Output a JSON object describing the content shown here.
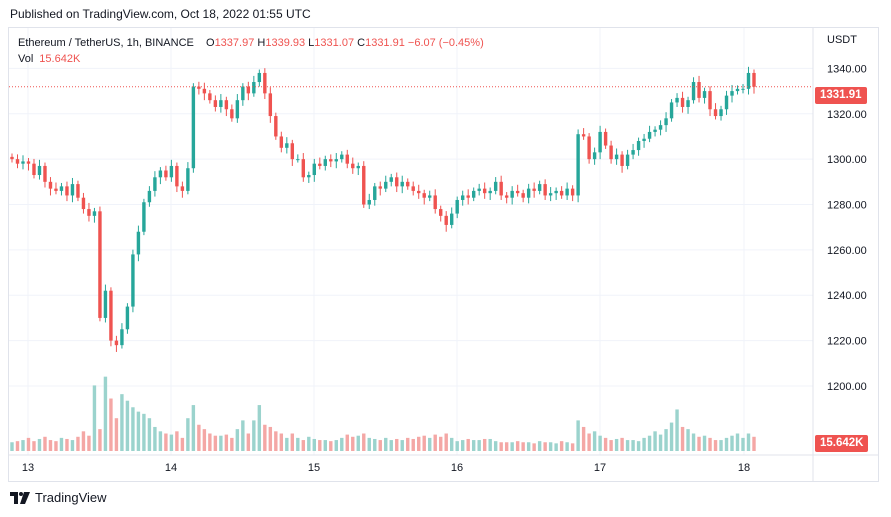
{
  "published": "Published on TradingView.com, Oct 18, 2022 01:55 UTC",
  "legend": {
    "symbol": "Ethereum / TetherUS, 1h, BINANCE",
    "o_label": "O",
    "o_value": "1337.97",
    "h_label": "H",
    "h_value": "1339.93",
    "l_label": "L",
    "l_value": "1331.07",
    "c_label": "C",
    "c_value": "1331.91",
    "change": "−6.07 (−0.45%)"
  },
  "volume_legend": {
    "label": "Vol",
    "value": "15.642K"
  },
  "currency": "USDT",
  "last_price_label": "1331.91",
  "last_volume_label": "15.642K",
  "brand": {
    "name": "TradingView",
    "logo_icon": "tradingview-logo-icon"
  },
  "colors": {
    "up": "#26a69a",
    "down": "#ef5350",
    "up_vol": "#9bd3cd",
    "down_vol": "#f4a7a5",
    "grid": "#f0f3fa"
  },
  "chart_data": {
    "type": "candlestick",
    "y_ticks": [
      "1200.00",
      "1220.00",
      "1240.00",
      "1260.00",
      "1280.00",
      "1300.00",
      "1320.00",
      "1340.00"
    ],
    "ylim": [
      1185,
      1349
    ],
    "x_ticks": [
      "13",
      "14",
      "15",
      "16",
      "17",
      "18"
    ],
    "last_price": 1331.91,
    "last_price_line": "dotted",
    "grid": true,
    "series": [
      {
        "name": "price",
        "closes": [
          1300,
          1298,
          1299,
          1298,
          1293,
          1297,
          1290,
          1287,
          1286,
          1288,
          1284,
          1289,
          1283,
          1278,
          1275,
          1277,
          1230,
          1242,
          1220,
          1218,
          1225,
          1235,
          1258,
          1268,
          1281,
          1286,
          1292,
          1295,
          1292,
          1297,
          1288,
          1286,
          1296,
          1332,
          1331,
          1329,
          1326,
          1323,
          1326,
          1322,
          1318,
          1326,
          1332,
          1329,
          1334,
          1338,
          1329,
          1319,
          1310,
          1305,
          1307,
          1300,
          1300,
          1292,
          1293,
          1298,
          1297,
          1300,
          1299,
          1300,
          1302,
          1298,
          1296,
          1297,
          1280,
          1282,
          1288,
          1287,
          1290,
          1292,
          1288,
          1290,
          1288,
          1286,
          1285,
          1283,
          1284,
          1278,
          1275,
          1271,
          1276,
          1282,
          1284,
          1283,
          1286,
          1287,
          1285,
          1286,
          1290,
          1284,
          1283,
          1286,
          1285,
          1283,
          1287,
          1286,
          1289,
          1284,
          1285,
          1286,
          1284,
          1287,
          1284,
          1311,
          1310,
          1300,
          1303,
          1312,
          1306,
          1300,
          1302,
          1297,
          1302,
          1304,
          1308,
          1309,
          1312,
          1313,
          1315,
          1318,
          1325,
          1327,
          1323,
          1326,
          1334,
          1327,
          1330,
          1322,
          1319,
          1322,
          1328,
          1330,
          1331,
          1331,
          1338,
          1331.91
        ]
      },
      {
        "name": "volume",
        "values": [
          0.8,
          0.9,
          1.0,
          1.2,
          0.9,
          1.1,
          1.3,
          1.0,
          0.9,
          1.2,
          1.1,
          1.0,
          1.3,
          1.8,
          1.4,
          6.0,
          2.0,
          6.8,
          4.8,
          3.0,
          5.2,
          4.6,
          4.0,
          3.6,
          3.4,
          3.0,
          2.2,
          1.8,
          1.6,
          1.5,
          1.8,
          1.2,
          3.0,
          4.2,
          2.4,
          2.0,
          1.6,
          1.4,
          1.4,
          1.5,
          1.2,
          2.0,
          2.8,
          1.6,
          2.8,
          4.2,
          2.4,
          2.2,
          1.8,
          1.6,
          1.2,
          1.6,
          1.2,
          1.0,
          1.3,
          1.1,
          1.0,
          1.0,
          0.9,
          1.0,
          1.2,
          1.5,
          1.3,
          1.4,
          1.6,
          1.2,
          1.1,
          1.0,
          1.2,
          1.0,
          1.1,
          1.0,
          1.2,
          1.1,
          1.3,
          1.4,
          1.2,
          1.5,
          1.3,
          1.6,
          1.2,
          0.9,
          1.0,
          1.1,
          1.0,
          1.0,
          1.1,
          1.1,
          0.9,
          0.8,
          0.8,
          0.8,
          0.9,
          0.8,
          0.8,
          0.7,
          0.9,
          0.8,
          0.8,
          0.7,
          0.9,
          0.8,
          0.7,
          2.8,
          2.2,
          1.6,
          1.8,
          1.4,
          1.2,
          1.0,
          1.1,
          1.2,
          1.0,
          1.0,
          0.9,
          1.2,
          1.4,
          1.8,
          1.5,
          2.0,
          2.6,
          3.8,
          2.2,
          2.0,
          1.6,
          1.3,
          1.4,
          1.2,
          1.0,
          1.0,
          1.2,
          1.4,
          1.6,
          1.2,
          1.6,
          1.3
        ]
      }
    ]
  }
}
